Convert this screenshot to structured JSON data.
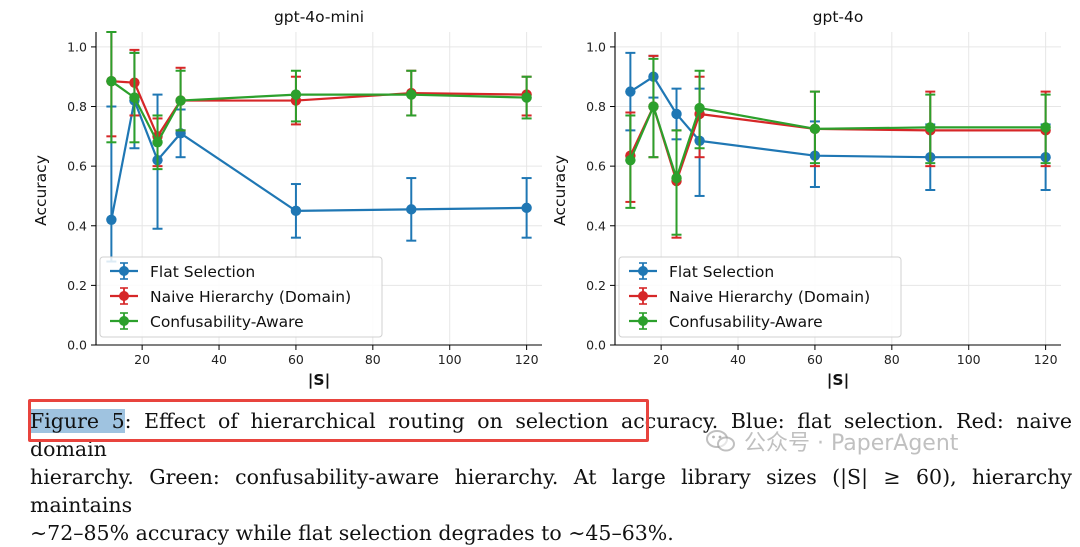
{
  "chart_data": [
    {
      "type": "line",
      "title": "gpt-4o-mini",
      "xlabel": "|S|",
      "ylabel": "Accuracy",
      "xlim": [
        8,
        124
      ],
      "ylim": [
        0,
        1.05
      ],
      "xticks": [
        20,
        40,
        60,
        80,
        100,
        120
      ],
      "yticks": [
        0.0,
        0.2,
        0.4,
        0.6,
        0.8,
        1.0
      ],
      "x": [
        12,
        18,
        24,
        30,
        60,
        90,
        120
      ],
      "grid": true,
      "legend_position": "lower-left",
      "series": [
        {
          "name": "Flat Selection",
          "color": "#1f77b4",
          "values": [
            0.42,
            0.82,
            0.62,
            0.71,
            0.45,
            0.455,
            0.46
          ],
          "err_low": [
            0.28,
            0.66,
            0.39,
            0.63,
            0.36,
            0.35,
            0.36
          ],
          "err_high": [
            0.8,
            0.98,
            0.84,
            0.79,
            0.54,
            0.56,
            0.56
          ]
        },
        {
          "name": "Naive Hierarchy (Domain)",
          "color": "#d62728",
          "values": [
            0.885,
            0.88,
            0.7,
            0.82,
            0.82,
            0.845,
            0.84
          ],
          "err_low": [
            0.7,
            0.77,
            0.6,
            0.72,
            0.74,
            0.77,
            0.77
          ],
          "err_high": [
            1.05,
            0.99,
            0.76,
            0.93,
            0.9,
            0.92,
            0.9
          ]
        },
        {
          "name": "Confusability-Aware",
          "color": "#2ca02c",
          "values": [
            0.885,
            0.83,
            0.68,
            0.82,
            0.84,
            0.84,
            0.83
          ],
          "err_low": [
            0.68,
            0.68,
            0.59,
            0.72,
            0.75,
            0.77,
            0.76
          ],
          "err_high": [
            1.05,
            0.98,
            0.77,
            0.92,
            0.92,
            0.92,
            0.9
          ]
        }
      ]
    },
    {
      "type": "line",
      "title": "gpt-4o",
      "xlabel": "|S|",
      "ylabel": "Accuracy",
      "xlim": [
        8,
        124
      ],
      "ylim": [
        0,
        1.05
      ],
      "xticks": [
        20,
        40,
        60,
        80,
        100,
        120
      ],
      "yticks": [
        0.0,
        0.2,
        0.4,
        0.6,
        0.8,
        1.0
      ],
      "x": [
        12,
        18,
        24,
        30,
        60,
        90,
        120
      ],
      "grid": true,
      "legend_position": "lower-left",
      "series": [
        {
          "name": "Flat Selection",
          "color": "#1f77b4",
          "values": [
            0.85,
            0.9,
            0.775,
            0.685,
            0.635,
            0.63,
            0.63
          ],
          "err_low": [
            0.72,
            0.83,
            0.69,
            0.5,
            0.53,
            0.52,
            0.52
          ],
          "err_high": [
            0.98,
            0.97,
            0.86,
            0.86,
            0.75,
            0.74,
            0.74
          ]
        },
        {
          "name": "Naive Hierarchy (Domain)",
          "color": "#d62728",
          "values": [
            0.635,
            0.8,
            0.55,
            0.775,
            0.725,
            0.72,
            0.72
          ],
          "err_low": [
            0.48,
            0.63,
            0.36,
            0.63,
            0.6,
            0.6,
            0.6
          ],
          "err_high": [
            0.78,
            0.97,
            0.72,
            0.9,
            0.85,
            0.85,
            0.85
          ]
        },
        {
          "name": "Confusability-Aware",
          "color": "#2ca02c",
          "values": [
            0.62,
            0.8,
            0.56,
            0.795,
            0.725,
            0.73,
            0.73
          ],
          "err_low": [
            0.46,
            0.63,
            0.37,
            0.66,
            0.61,
            0.61,
            0.61
          ],
          "err_high": [
            0.77,
            0.96,
            0.72,
            0.92,
            0.85,
            0.84,
            0.84
          ]
        }
      ]
    }
  ],
  "caption": {
    "label": "Figure 5",
    "part1": ":  Effect of hierarchical routing on selection accuracy.  Blue:  flat selection.  Red:  naive domain",
    "line2": "hierarchy.  Green:  confusability-aware hierarchy.  At large library sizes (|S| ≥ 60), hierarchy maintains",
    "line3": "∼72–85% accuracy while flat selection degrades to ∼45–63%."
  },
  "watermark": {
    "text": "公众号 · PaperAgent",
    "icon": "wechat-icon"
  }
}
